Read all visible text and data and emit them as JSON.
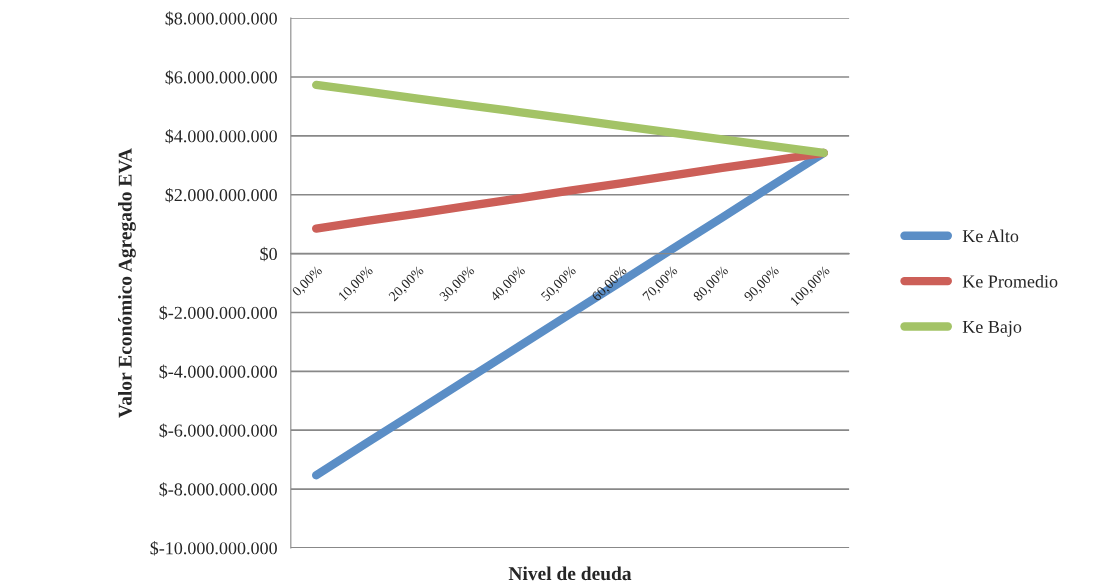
{
  "chart_data": {
    "type": "line",
    "xlabel": "Nivel de deuda",
    "ylabel": "Valor Económico Agregado EVA",
    "categories": [
      "0,00%",
      "10,00%",
      "20,00%",
      "30,00%",
      "40,00%",
      "50,00%",
      "60,00%",
      "70,00%",
      "80,00%",
      "90,00%",
      "100,00%"
    ],
    "series": [
      {
        "name": "Ke Alto",
        "color": "#5b8ec6",
        "values": [
          -7530000000,
          -6430000000,
          -5340000000,
          -4240000000,
          -3150000000,
          -2050000000,
          -960000000,
          140000000,
          1230000000,
          2330000000,
          3420000000
        ]
      },
      {
        "name": "Ke Promedio",
        "color": "#cc5f58",
        "values": [
          850000000,
          1110000000,
          1360000000,
          1620000000,
          1880000000,
          2140000000,
          2390000000,
          2650000000,
          2910000000,
          3160000000,
          3420000000
        ]
      },
      {
        "name": "Ke Bajo",
        "color": "#a3c366",
        "values": [
          5730000000,
          5500000000,
          5270000000,
          5040000000,
          4810000000,
          4580000000,
          4340000000,
          4110000000,
          3880000000,
          3650000000,
          3420000000
        ]
      }
    ],
    "ylim": [
      -10000000000,
      8000000000
    ],
    "yticks": [
      {
        "value": -10000000000,
        "label": "$-10.000.000.000"
      },
      {
        "value": -8000000000,
        "label": "$-8.000.000.000"
      },
      {
        "value": -6000000000,
        "label": "$-6.000.000.000"
      },
      {
        "value": -4000000000,
        "label": "$-4.000.000.000"
      },
      {
        "value": -2000000000,
        "label": "$-2.000.000.000"
      },
      {
        "value": 0,
        "label": "$0"
      },
      {
        "value": 2000000000,
        "label": "$2.000.000.000"
      },
      {
        "value": 4000000000,
        "label": "$4.000.000.000"
      },
      {
        "value": 6000000000,
        "label": "$6.000.000.000"
      },
      {
        "value": 8000000000,
        "label": "$8.000.000.000"
      }
    ],
    "grid": "y",
    "legend": "right",
    "marker": "none",
    "line_style": "solid"
  }
}
